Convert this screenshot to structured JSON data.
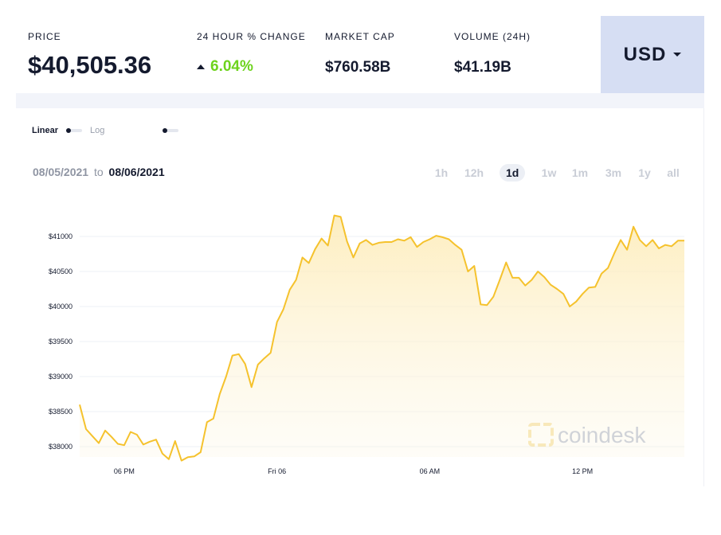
{
  "stats": {
    "price": {
      "label": "PRICE",
      "value": "$40,505.36"
    },
    "change": {
      "label": "24 HOUR % CHANGE",
      "value": "6.04%",
      "direction": "up"
    },
    "market_cap": {
      "label": "MARKET CAP",
      "value": "$760.58B"
    },
    "volume": {
      "label": "VOLUME (24H)",
      "value": "$41.19B"
    }
  },
  "currency": {
    "selected": "USD"
  },
  "scale": {
    "linear_label": "Linear",
    "log_label": "Log"
  },
  "date_range": {
    "from": "08/05/2021",
    "to_word": "to",
    "until": "08/06/2021"
  },
  "ranges": [
    {
      "label": "1h",
      "active": false
    },
    {
      "label": "12h",
      "active": false
    },
    {
      "label": "1d",
      "active": true
    },
    {
      "label": "1w",
      "active": false
    },
    {
      "label": "1m",
      "active": false
    },
    {
      "label": "3m",
      "active": false
    },
    {
      "label": "1y",
      "active": false
    },
    {
      "label": "all",
      "active": false
    }
  ],
  "watermark": "coindesk",
  "colors": {
    "line": "#f5c22d",
    "fill": "#fdf3d6",
    "accent_green": "#6ed31d",
    "currency_bg": "#d6def3"
  },
  "chart_data": {
    "type": "area",
    "ylim": [
      37800,
      41400
    ],
    "yticks": [
      38000,
      38500,
      39000,
      39500,
      40000,
      40500,
      41000
    ],
    "ytick_labels": [
      "$38000",
      "$38500",
      "$39000",
      "$39500",
      "$40000",
      "$40500",
      "$41000"
    ],
    "xlim": [
      0,
      95
    ],
    "xticks": [
      7,
      31,
      55,
      79
    ],
    "xtick_labels": [
      "06 PM",
      "Fri 06",
      "06 AM",
      "12 PM"
    ],
    "grid": true,
    "series": [
      {
        "x": [
          0,
          1,
          2,
          3,
          4,
          5,
          6,
          7,
          8,
          9,
          10,
          11,
          12,
          13,
          14,
          15,
          16,
          17,
          18,
          19,
          20,
          21,
          22,
          23,
          24,
          25,
          26,
          27,
          28,
          29,
          30,
          31,
          32,
          33,
          34,
          35,
          36,
          37,
          38,
          39,
          40,
          41,
          42,
          43,
          44,
          45,
          46,
          47,
          48,
          49,
          50,
          51,
          52,
          53,
          54,
          55,
          56,
          57,
          58,
          59,
          60,
          61,
          62,
          63,
          64,
          65,
          66,
          67,
          68,
          69,
          70,
          71,
          72,
          73,
          74,
          75,
          76,
          77,
          78,
          79,
          80,
          81,
          82,
          83,
          84,
          85,
          86,
          87,
          88,
          89,
          90,
          91,
          92,
          93,
          94,
          95
        ],
        "values": [
          38600,
          38250,
          38150,
          38050,
          38230,
          38140,
          38040,
          38020,
          38210,
          38170,
          38030,
          38070,
          38100,
          37900,
          37820,
          38080,
          37800,
          37850,
          37860,
          37920,
          38350,
          38400,
          38750,
          39000,
          39300,
          39320,
          39180,
          38850,
          39170,
          39260,
          39340,
          39780,
          39960,
          40240,
          40380,
          40700,
          40620,
          40820,
          40970,
          40870,
          41300,
          41280,
          40930,
          40700,
          40900,
          40950,
          40880,
          40910,
          40920,
          40920,
          40960,
          40940,
          40990,
          40850,
          40920,
          40960,
          41010,
          40990,
          40960,
          40880,
          40810,
          40500,
          40580,
          40030,
          40020,
          40140,
          40380,
          40630,
          40410,
          40410,
          40300,
          40380,
          40500,
          40420,
          40310,
          40250,
          40180,
          40000,
          40070,
          40180,
          40270,
          40280,
          40470,
          40550,
          40760,
          40950,
          40810,
          41140,
          40950,
          40860,
          40950,
          40830,
          40880,
          40860,
          40940,
          40940
        ]
      }
    ]
  }
}
